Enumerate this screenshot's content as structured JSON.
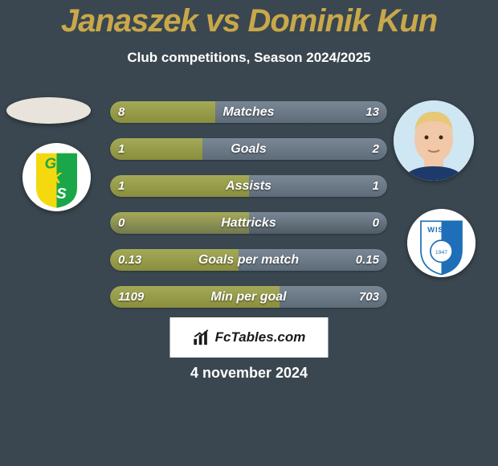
{
  "title": {
    "text": "Janaszek vs Dominik Kun",
    "accent_color": "#c9a84a",
    "fontsize": 40
  },
  "subtitle": {
    "text": "Club competitions, Season 2024/2025",
    "fontsize": 17
  },
  "left_player": {
    "avatar_shape": "oval",
    "avatar_bg": "#e8e4db",
    "club_badge": {
      "bg": "#ffffff",
      "stripe1": "#f4d90f",
      "stripe2": "#1aa749",
      "letters": "GKS",
      "letters_color": "#1aa749"
    }
  },
  "right_player": {
    "avatar_bg": "#cfe6f3",
    "face_tint": "#f1c9a8",
    "hair": "#e6c877",
    "club_badge": {
      "bg": "#ffffff",
      "stripe": "#1e6fb8",
      "text": "WISLA",
      "text_color": "#1e6fb8"
    }
  },
  "bars": {
    "colors": {
      "left": "#8a8f3e",
      "right": "#5e6c7a",
      "zero_left": "#74794f",
      "zero_right": "#505b66"
    },
    "label_fontsize": 16,
    "value_fontsize": 15,
    "rows": [
      {
        "label": "Matches",
        "left": "8",
        "right": "13",
        "pctL": 38.1,
        "pctR": 61.9,
        "zero": false
      },
      {
        "label": "Goals",
        "left": "1",
        "right": "2",
        "pctL": 33.3,
        "pctR": 66.7,
        "zero": false
      },
      {
        "label": "Assists",
        "left": "1",
        "right": "1",
        "pctL": 50.0,
        "pctR": 50.0,
        "zero": false
      },
      {
        "label": "Hattricks",
        "left": "0",
        "right": "0",
        "pctL": 50.0,
        "pctR": 50.0,
        "zero": true
      },
      {
        "label": "Goals per match",
        "left": "0.13",
        "right": "0.15",
        "pctL": 46.4,
        "pctR": 53.6,
        "zero": false
      },
      {
        "label": "Min per goal",
        "left": "1109",
        "right": "703",
        "pctL": 61.2,
        "pctR": 38.8,
        "zero": false
      }
    ]
  },
  "badge": {
    "text": "FcTables.com",
    "fontsize": 17
  },
  "date": {
    "text": "4 november 2024",
    "fontsize": 18
  },
  "bg_color": "#3a4750"
}
